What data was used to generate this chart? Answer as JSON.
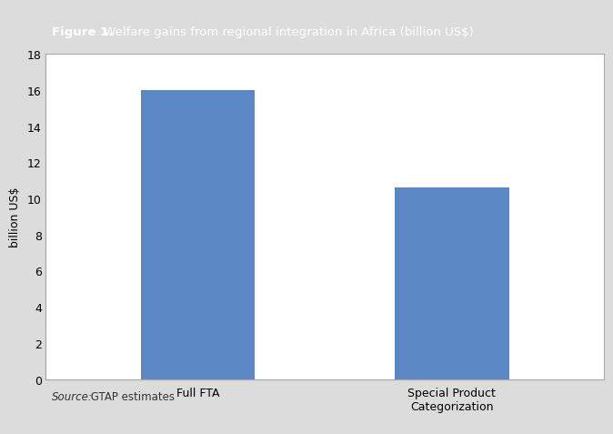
{
  "categories": [
    "Full FTA",
    "Special Product\nCategorization"
  ],
  "values": [
    16.0,
    10.6
  ],
  "bar_color": "#5B87C5",
  "ylabel": "billion US$",
  "ylim": [
    0,
    18
  ],
  "yticks": [
    0,
    2,
    4,
    6,
    8,
    10,
    12,
    14,
    16,
    18
  ],
  "figure_title_bold": "Figure 1.",
  "figure_title_rest": " Welfare gains from regional integration in Africa (billion US$)",
  "source_italic": "Source:",
  "source_rest": " GTAP estimates",
  "title_bg_color": "#6D6D6D",
  "title_text_color": "#FFFFFF",
  "chart_bg_color": "#FFFFFF",
  "outer_bg_color": "#DCDCDC",
  "bar_width": 0.45,
  "chart_border_color": "#AAAAAA"
}
